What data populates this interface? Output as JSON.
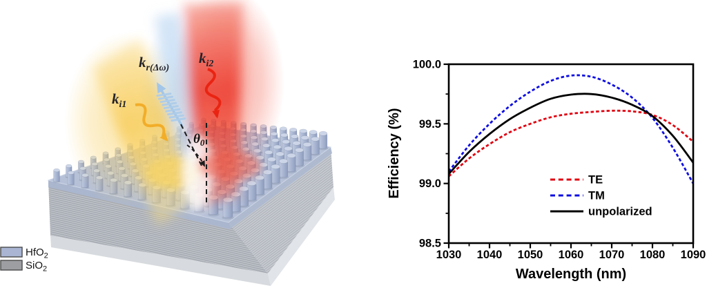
{
  "figure": {
    "background": "#ffffff",
    "description_visible_text_only": true
  },
  "colors": {
    "hfo2_swatch": "#a9b5d3",
    "sio2_swatch": "#9c9ea1",
    "swatch_border": "#4a4a4a",
    "pillar_top": "#ccd6e8",
    "slab_top": "#b6c1d8",
    "beam_yellow": "#f2ad29",
    "beam_red": "#ea2412",
    "beam_blue": "#a3c6e8",
    "dash_lines": "#1c1c1c",
    "te": "#e0000f",
    "tm": "#0d0de0",
    "unpolarized": "#000000"
  },
  "illustration": {
    "labels": {
      "k_i1": {
        "base": "k",
        "sub": "i1"
      },
      "k_r": {
        "base": "k",
        "sub": "r(Δω)"
      },
      "k_i2": {
        "base": "k",
        "sub": "i2"
      },
      "theta": {
        "base": "θ",
        "sub": "0"
      }
    },
    "material_legend": [
      {
        "formula": "HfO",
        "sub": "2",
        "color": "#a9b5d3"
      },
      {
        "formula": "SiO",
        "sub": "2",
        "color": "#9c9ea1"
      }
    ]
  },
  "chart_data": {
    "type": "line",
    "title": "",
    "xlabel": "Wavelength (nm)",
    "ylabel": "Efficiency (%)",
    "xlim": [
      1030,
      1090
    ],
    "ylim": [
      98.5,
      100.0
    ],
    "grid": false,
    "legend_position": "inside lower-center-right",
    "x_major_ticks": [
      1030,
      1040,
      1050,
      1060,
      1070,
      1080,
      1090
    ],
    "x_tick_labels": [
      "1030",
      "1040",
      "1050",
      "1060",
      "1070",
      "1080",
      "1090"
    ],
    "x_minor_ticks": [
      1035,
      1045,
      1055,
      1065,
      1075,
      1085
    ],
    "y_major_ticks": [
      98.5,
      99.0,
      99.5,
      100.0
    ],
    "y_tick_labels": [
      "98.5",
      "99.0",
      "99.5",
      "100.0"
    ],
    "y_minor_ticks": [
      98.75,
      99.25,
      99.75
    ],
    "x": [
      1030,
      1035,
      1040,
      1045,
      1050,
      1055,
      1060,
      1065,
      1070,
      1075,
      1080,
      1085,
      1090
    ],
    "series": [
      {
        "name": "TE",
        "color": "#e0000f",
        "style": "dashed",
        "values": [
          99.06,
          99.21,
          99.33,
          99.43,
          99.5,
          99.555,
          99.585,
          99.6,
          99.61,
          99.605,
          99.575,
          99.49,
          99.35
        ]
      },
      {
        "name": "TM",
        "color": "#0d0de0",
        "style": "dashed",
        "values": [
          99.1,
          99.32,
          99.5,
          99.65,
          99.77,
          99.86,
          99.905,
          99.895,
          99.83,
          99.72,
          99.55,
          99.3,
          99.0
        ]
      },
      {
        "name": "unpolarized",
        "color": "#000000",
        "style": "solid",
        "values": [
          99.08,
          99.265,
          99.415,
          99.54,
          99.635,
          99.71,
          99.745,
          99.75,
          99.72,
          99.66,
          99.565,
          99.4,
          99.175
        ]
      }
    ]
  }
}
